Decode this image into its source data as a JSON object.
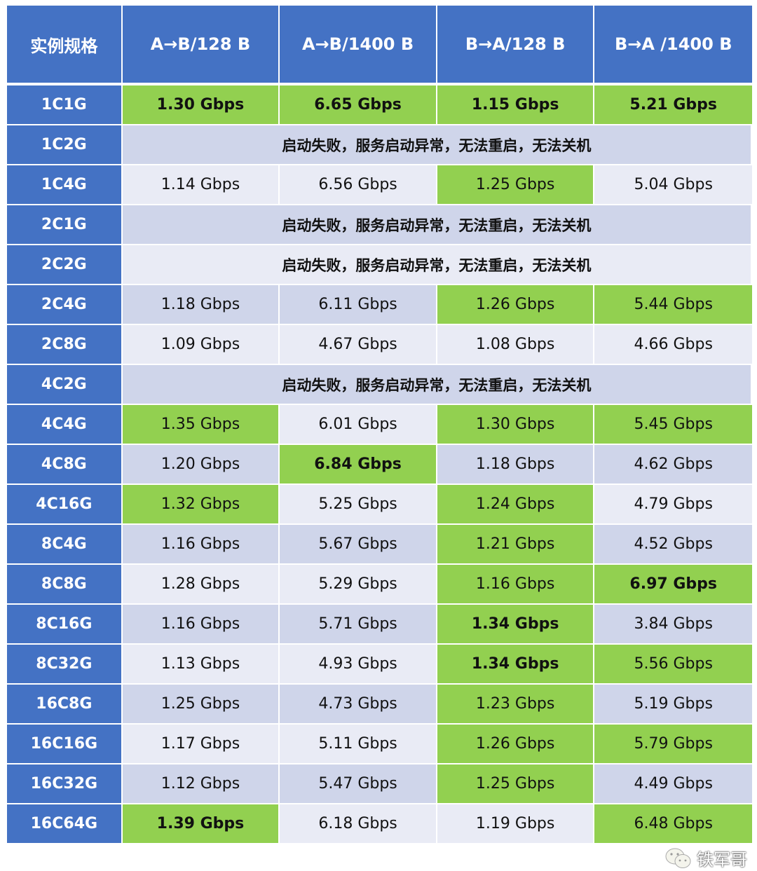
{
  "headers": [
    "实例规格",
    "A→B/128 B",
    "A→B/1400 B",
    "B→A/128 B",
    "B→A /1400 B"
  ],
  "fail_text": "启动失败，服务启动异常，无法重启，无法关机",
  "colors": {
    "header": "#4472c4",
    "highlight": "#92d050",
    "row_light": "#e9ebf5",
    "row_dark": "#cfd5ea"
  },
  "watermark": "铁军哥",
  "rows": [
    {
      "spec": "1C1G",
      "cells": [
        {
          "v": "1.30 Gbps",
          "g": true,
          "b": true
        },
        {
          "v": "6.65 Gbps",
          "g": true,
          "b": true
        },
        {
          "v": "1.15 Gbps",
          "g": true,
          "b": true
        },
        {
          "v": "5.21 Gbps",
          "g": true,
          "b": true
        }
      ]
    },
    {
      "spec": "1C2G",
      "fail": true
    },
    {
      "spec": "1C4G",
      "cells": [
        {
          "v": "1.14 Gbps"
        },
        {
          "v": "6.56 Gbps"
        },
        {
          "v": "1.25 Gbps",
          "g": true
        },
        {
          "v": "5.04 Gbps"
        }
      ]
    },
    {
      "spec": "2C1G",
      "fail": true
    },
    {
      "spec": "2C2G",
      "fail": true
    },
    {
      "spec": "2C4G",
      "cells": [
        {
          "v": "1.18 Gbps"
        },
        {
          "v": "6.11 Gbps"
        },
        {
          "v": "1.26 Gbps",
          "g": true
        },
        {
          "v": "5.44 Gbps",
          "g": true
        }
      ]
    },
    {
      "spec": "2C8G",
      "cells": [
        {
          "v": "1.09 Gbps"
        },
        {
          "v": "4.67 Gbps"
        },
        {
          "v": "1.08 Gbps"
        },
        {
          "v": "4.66 Gbps"
        }
      ]
    },
    {
      "spec": "4C2G",
      "fail": true
    },
    {
      "spec": "4C4G",
      "cells": [
        {
          "v": "1.35 Gbps",
          "g": true
        },
        {
          "v": "6.01 Gbps"
        },
        {
          "v": "1.30 Gbps",
          "g": true
        },
        {
          "v": "5.45 Gbps",
          "g": true
        }
      ]
    },
    {
      "spec": "4C8G",
      "cells": [
        {
          "v": "1.20 Gbps"
        },
        {
          "v": "6.84 Gbps",
          "g": true,
          "b": true
        },
        {
          "v": "1.18 Gbps"
        },
        {
          "v": "4.62 Gbps"
        }
      ]
    },
    {
      "spec": "4C16G",
      "cells": [
        {
          "v": "1.32 Gbps",
          "g": true
        },
        {
          "v": "5.25 Gbps"
        },
        {
          "v": "1.24 Gbps",
          "g": true
        },
        {
          "v": "4.79 Gbps"
        }
      ]
    },
    {
      "spec": "8C4G",
      "cells": [
        {
          "v": "1.16 Gbps"
        },
        {
          "v": "5.67 Gbps"
        },
        {
          "v": "1.21 Gbps",
          "g": true
        },
        {
          "v": "4.52 Gbps"
        }
      ]
    },
    {
      "spec": "8C8G",
      "cells": [
        {
          "v": "1.28 Gbps"
        },
        {
          "v": "5.29 Gbps"
        },
        {
          "v": "1.16 Gbps",
          "g": true
        },
        {
          "v": "6.97 Gbps",
          "g": true,
          "b": true
        }
      ]
    },
    {
      "spec": "8C16G",
      "cells": [
        {
          "v": "1.16 Gbps"
        },
        {
          "v": "5.71 Gbps"
        },
        {
          "v": "1.34 Gbps",
          "g": true,
          "b": true
        },
        {
          "v": "3.84 Gbps"
        }
      ]
    },
    {
      "spec": "8C32G",
      "cells": [
        {
          "v": "1.13 Gbps"
        },
        {
          "v": "4.93 Gbps"
        },
        {
          "v": "1.34 Gbps",
          "g": true,
          "b": true
        },
        {
          "v": "5.56 Gbps",
          "g": true
        }
      ]
    },
    {
      "spec": "16C8G",
      "cells": [
        {
          "v": "1.25 Gbps"
        },
        {
          "v": "4.73 Gbps"
        },
        {
          "v": "1.23 Gbps",
          "g": true
        },
        {
          "v": "5.19 Gbps"
        }
      ]
    },
    {
      "spec": "16C16G",
      "cells": [
        {
          "v": "1.17 Gbps"
        },
        {
          "v": "5.11 Gbps"
        },
        {
          "v": "1.26 Gbps",
          "g": true
        },
        {
          "v": "5.79 Gbps",
          "g": true
        }
      ]
    },
    {
      "spec": "16C32G",
      "cells": [
        {
          "v": "1.12 Gbps"
        },
        {
          "v": "5.47 Gbps"
        },
        {
          "v": "1.25 Gbps",
          "g": true
        },
        {
          "v": "4.49 Gbps"
        }
      ]
    },
    {
      "spec": "16C64G",
      "cells": [
        {
          "v": "1.39 Gbps",
          "g": true,
          "b": true
        },
        {
          "v": "6.18 Gbps"
        },
        {
          "v": "1.19 Gbps"
        },
        {
          "v": "6.48 Gbps",
          "g": true
        }
      ]
    }
  ]
}
